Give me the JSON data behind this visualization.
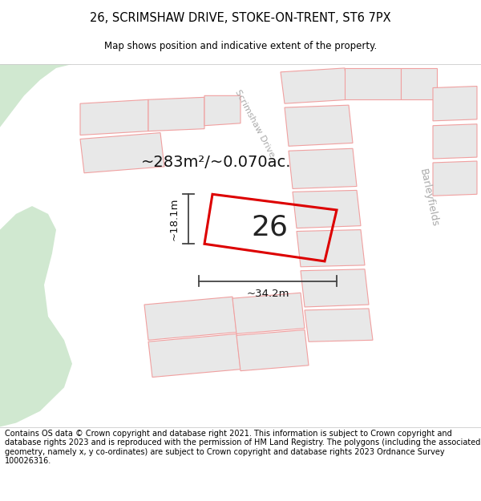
{
  "title_line1": "26, SCRIMSHAW DRIVE, STOKE-ON-TRENT, ST6 7PX",
  "title_line2": "Map shows position and indicative extent of the property.",
  "footer": "Contains OS data © Crown copyright and database right 2021. This information is subject to Crown copyright and database rights 2023 and is reproduced with the permission of HM Land Registry. The polygons (including the associated geometry, namely x, y co-ordinates) are subject to Crown copyright and database rights 2023 Ordnance Survey 100026316.",
  "area_text": "~283m²/~0.070ac.",
  "width_text": "~34.2m",
  "height_text": "~18.1m",
  "number_text": "26",
  "map_bg": "#f2f2ee",
  "building_fill": "#e8e8e8",
  "building_outline": "#f0a0a0",
  "subject_outline": "#dd0000",
  "green_color": "#d0e8d0",
  "road_color": "#ffffff",
  "title_fontsize": 10.5,
  "subtitle_fontsize": 8.5,
  "footer_fontsize": 7.0,
  "area_fontsize": 14,
  "number_fontsize": 26,
  "dim_fontsize": 9.5,
  "road_label_fontsize": 8,
  "road_label_color": "#aaaaaa",
  "barleyfields_color": "#aaaaaa"
}
